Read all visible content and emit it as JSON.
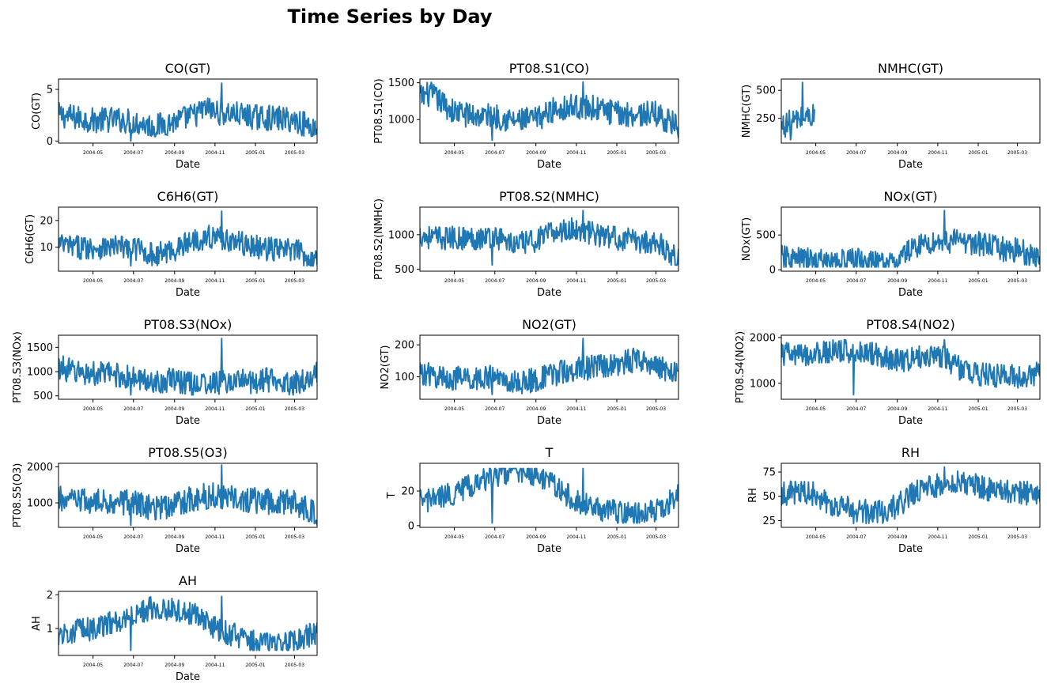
{
  "figure": {
    "title": "Time Series by Day"
  },
  "chart_data": [
    {
      "type": "line",
      "title": "CO(GT)",
      "xlabel": "Date",
      "ylabel": "CO(GT)",
      "x_range": [
        "2004-03-10",
        "2005-04-04"
      ],
      "ylim": [
        -0.2,
        6.0
      ],
      "yticks": [
        0,
        5
      ],
      "ytick_labels": [
        "0",
        "5"
      ],
      "xticks": [
        "2004-05",
        "2004-07",
        "2004-09",
        "2004-11",
        "2005-01",
        "2005-03"
      ],
      "series": [
        {
          "x": [
            "2004-03-10",
            "2004-04-01",
            "2004-05-01",
            "2004-06-01",
            "2004-07-01",
            "2004-08-01",
            "2004-09-01",
            "2004-10-01",
            "2004-10-20",
            "2004-11-01",
            "2004-12-01",
            "2005-01-01",
            "2005-02-01",
            "2005-03-01",
            "2005-04-04"
          ],
          "values": [
            2.5,
            2.3,
            2.0,
            2.1,
            1.9,
            1.4,
            1.9,
            2.5,
            3.2,
            2.8,
            2.6,
            2.3,
            2.2,
            2.0,
            1.2
          ],
          "min": 0.0,
          "max": 5.6
        }
      ]
    },
    {
      "type": "line",
      "title": "PT08.S1(CO)",
      "xlabel": "Date",
      "ylabel": "PT08.S1(CO)",
      "x_range": [
        "2004-03-10",
        "2005-04-04"
      ],
      "ylim": [
        680,
        1550
      ],
      "yticks": [
        1000,
        1500
      ],
      "ytick_labels": [
        "1000",
        "1500"
      ],
      "xticks": [
        "2004-05",
        "2004-07",
        "2004-09",
        "2004-11",
        "2005-01",
        "2005-03"
      ],
      "series": [
        {
          "x": [
            "2004-03-10",
            "2004-03-25",
            "2004-05-01",
            "2004-06-01",
            "2004-07-01",
            "2004-08-01",
            "2004-09-01",
            "2004-10-01",
            "2004-11-01",
            "2004-12-01",
            "2005-01-01",
            "2005-02-01",
            "2005-03-01",
            "2005-04-04"
          ],
          "values": [
            1300,
            1350,
            1100,
            1050,
            1050,
            980,
            1000,
            1150,
            1180,
            1150,
            1080,
            1070,
            1080,
            900
          ],
          "min": 720,
          "max": 1510
        }
      ]
    },
    {
      "type": "line",
      "title": "NMHC(GT)",
      "xlabel": "Date",
      "ylabel": "NMHC(GT)",
      "x_range": [
        "2004-03-10",
        "2005-04-04"
      ],
      "ylim": [
        30,
        600
      ],
      "yticks": [
        250,
        500
      ],
      "ytick_labels": [
        "250",
        "500"
      ],
      "xticks": [
        "2004-05",
        "2004-07",
        "2004-09",
        "2004-11",
        "2005-01",
        "2005-03"
      ],
      "series": [
        {
          "x": [
            "2004-03-10",
            "2004-03-25",
            "2004-04-10",
            "2004-04-25",
            "2004-04-30"
          ],
          "values": [
            180,
            220,
            250,
            280,
            260
          ],
          "min": 60,
          "max": 570
        }
      ]
    },
    {
      "type": "line",
      "title": "C6H6(GT)",
      "xlabel": "Date",
      "ylabel": "C6H6(GT)",
      "x_range": [
        "2004-03-10",
        "2005-04-04"
      ],
      "ylim": [
        1,
        25
      ],
      "yticks": [
        10,
        20
      ],
      "ytick_labels": [
        "10",
        "20"
      ],
      "xticks": [
        "2004-05",
        "2004-07",
        "2004-09",
        "2004-11",
        "2005-01",
        "2005-03"
      ],
      "series": [
        {
          "x": [
            "2004-03-10",
            "2004-04-01",
            "2004-05-01",
            "2004-06-01",
            "2004-07-01",
            "2004-08-01",
            "2004-09-01",
            "2004-10-01",
            "2004-11-01",
            "2004-12-01",
            "2005-01-01",
            "2005-02-01",
            "2005-03-01",
            "2005-04-04"
          ],
          "values": [
            11,
            10,
            10,
            10,
            10,
            7,
            9,
            13,
            14,
            12,
            10,
            9,
            9,
            5
          ],
          "min": 3,
          "max": 23.5
        }
      ]
    },
    {
      "type": "line",
      "title": "PT08.S2(NMHC)",
      "xlabel": "Date",
      "ylabel": "PT08.S2(NMHC)",
      "x_range": [
        "2004-03-10",
        "2005-04-04"
      ],
      "ylim": [
        470,
        1400
      ],
      "yticks": [
        500,
        1000
      ],
      "ytick_labels": [
        "500",
        "1000"
      ],
      "xticks": [
        "2004-05",
        "2004-07",
        "2004-09",
        "2004-11",
        "2005-01",
        "2005-03"
      ],
      "series": [
        {
          "x": [
            "2004-03-10",
            "2004-04-01",
            "2004-05-01",
            "2004-06-01",
            "2004-07-01",
            "2004-08-01",
            "2004-09-01",
            "2004-10-01",
            "2004-11-01",
            "2004-12-01",
            "2005-01-01",
            "2005-02-01",
            "2005-03-01",
            "2005-04-04"
          ],
          "values": [
            1000,
            950,
            950,
            950,
            980,
            850,
            920,
            1050,
            1080,
            1000,
            950,
            900,
            900,
            650
          ],
          "min": 560,
          "max": 1350
        }
      ]
    },
    {
      "type": "line",
      "title": "NOx(GT)",
      "xlabel": "Date",
      "ylabel": "NOx(GT)",
      "x_range": [
        "2004-03-10",
        "2005-04-04"
      ],
      "ylim": [
        -20,
        900
      ],
      "yticks": [
        0,
        500
      ],
      "ytick_labels": [
        "0",
        "500"
      ],
      "xticks": [
        "2004-05",
        "2004-07",
        "2004-09",
        "2004-11",
        "2005-01",
        "2005-03"
      ],
      "series": [
        {
          "x": [
            "2004-03-10",
            "2004-04-01",
            "2004-05-01",
            "2004-06-01",
            "2004-07-01",
            "2004-08-01",
            "2004-08-25",
            "2004-09-15",
            "2004-10-01",
            "2004-11-01",
            "2004-12-01",
            "2005-01-01",
            "2005-02-01",
            "2005-03-01",
            "2005-04-04"
          ],
          "values": [
            180,
            150,
            130,
            120,
            150,
            90,
            60,
            250,
            350,
            400,
            420,
            380,
            300,
            280,
            180
          ],
          "min": 40,
          "max": 850
        }
      ]
    },
    {
      "type": "line",
      "title": "PT08.S3(NOx)",
      "xlabel": "Date",
      "ylabel": "PT08.S3(NOx)",
      "x_range": [
        "2004-03-10",
        "2005-04-04"
      ],
      "ylim": [
        430,
        1750
      ],
      "yticks": [
        500,
        1000,
        1500
      ],
      "ytick_labels": [
        "500",
        "1000",
        "1500"
      ],
      "xticks": [
        "2004-05",
        "2004-07",
        "2004-09",
        "2004-11",
        "2005-01",
        "2005-03"
      ],
      "series": [
        {
          "x": [
            "2004-03-10",
            "2004-04-01",
            "2004-05-01",
            "2004-06-01",
            "2004-07-01",
            "2004-08-01",
            "2004-09-01",
            "2004-10-01",
            "2004-11-01",
            "2004-12-01",
            "2005-01-01",
            "2005-02-01",
            "2005-03-01",
            "2005-04-04"
          ],
          "values": [
            1100,
            1000,
            950,
            950,
            850,
            800,
            820,
            750,
            750,
            800,
            800,
            850,
            750,
            950
          ],
          "min": 520,
          "max": 1680
        }
      ]
    },
    {
      "type": "line",
      "title": "NO2(GT)",
      "xlabel": "Date",
      "ylabel": "NO2(GT)",
      "x_range": [
        "2004-03-10",
        "2005-04-04"
      ],
      "ylim": [
        30,
        230
      ],
      "yticks": [
        100,
        200
      ],
      "ytick_labels": [
        "100",
        "200"
      ],
      "xticks": [
        "2004-05",
        "2004-07",
        "2004-09",
        "2004-11",
        "2005-01",
        "2005-03"
      ],
      "series": [
        {
          "x": [
            "2004-03-10",
            "2004-04-01",
            "2004-05-01",
            "2004-06-01",
            "2004-07-01",
            "2004-08-01",
            "2004-09-01",
            "2004-10-01",
            "2004-11-01",
            "2004-12-01",
            "2005-01-01",
            "2005-02-01",
            "2005-03-01",
            "2005-04-04"
          ],
          "values": [
            115,
            100,
            95,
            95,
            100,
            80,
            90,
            110,
            125,
            130,
            140,
            155,
            140,
            100
          ],
          "min": 45,
          "max": 220
        }
      ]
    },
    {
      "type": "line",
      "title": "PT08.S4(NO2)",
      "xlabel": "Date",
      "ylabel": "PT08.S4(NO2)",
      "x_range": [
        "2004-03-10",
        "2005-04-04"
      ],
      "ylim": [
        650,
        2050
      ],
      "yticks": [
        1000,
        2000
      ],
      "ytick_labels": [
        "1000",
        "2000"
      ],
      "xticks": [
        "2004-05",
        "2004-07",
        "2004-09",
        "2004-11",
        "2005-01",
        "2005-03"
      ],
      "series": [
        {
          "x": [
            "2004-03-10",
            "2004-04-01",
            "2004-05-01",
            "2004-06-01",
            "2004-07-01",
            "2004-08-01",
            "2004-09-01",
            "2004-10-01",
            "2004-11-01",
            "2004-12-01",
            "2005-01-01",
            "2005-02-01",
            "2005-03-01",
            "2005-04-04"
          ],
          "values": [
            1650,
            1600,
            1650,
            1700,
            1700,
            1650,
            1500,
            1550,
            1650,
            1350,
            1200,
            1150,
            1150,
            1200
          ],
          "min": 750,
          "max": 1950
        }
      ]
    },
    {
      "type": "line",
      "title": "PT08.S5(O3)",
      "xlabel": "Date",
      "ylabel": "PT08.S5(O3)",
      "x_range": [
        "2004-03-10",
        "2005-04-04"
      ],
      "ylim": [
        320,
        2100
      ],
      "yticks": [
        1000,
        2000
      ],
      "ytick_labels": [
        "1000",
        "2000"
      ],
      "xticks": [
        "2004-05",
        "2004-07",
        "2004-09",
        "2004-11",
        "2005-01",
        "2005-03"
      ],
      "series": [
        {
          "x": [
            "2004-03-10",
            "2004-04-01",
            "2004-05-01",
            "2004-06-01",
            "2004-07-01",
            "2004-08-01",
            "2004-09-01",
            "2004-10-01",
            "2004-11-01",
            "2004-12-01",
            "2005-01-01",
            "2005-02-01",
            "2005-03-01",
            "2005-04-04"
          ],
          "values": [
            1100,
            1050,
            1000,
            1050,
            1000,
            850,
            950,
            1150,
            1200,
            1150,
            1050,
            1000,
            1000,
            700
          ],
          "min": 380,
          "max": 2050
        }
      ]
    },
    {
      "type": "line",
      "title": "T",
      "xlabel": "Date",
      "ylabel": "T",
      "x_range": [
        "2004-03-10",
        "2005-04-04"
      ],
      "ylim": [
        -1,
        36
      ],
      "yticks": [
        0,
        20
      ],
      "ytick_labels": [
        "0",
        "20"
      ],
      "xticks": [
        "2004-05",
        "2004-07",
        "2004-09",
        "2004-11",
        "2005-01",
        "2005-03"
      ],
      "series": [
        {
          "x": [
            "2004-03-10",
            "2004-04-01",
            "2004-05-01",
            "2004-06-01",
            "2004-07-01",
            "2004-08-01",
            "2004-09-01",
            "2004-10-01",
            "2004-11-01",
            "2004-12-01",
            "2005-01-01",
            "2005-02-01",
            "2005-03-01",
            "2005-04-04"
          ],
          "values": [
            14,
            15,
            19,
            24,
            29,
            32,
            29,
            22,
            14,
            10,
            8,
            6,
            9,
            17
          ],
          "min": 1.5,
          "max": 33
        }
      ]
    },
    {
      "type": "line",
      "title": "RH",
      "xlabel": "Date",
      "ylabel": "RH",
      "x_range": [
        "2004-03-10",
        "2005-04-04"
      ],
      "ylim": [
        18,
        84
      ],
      "yticks": [
        25,
        50,
        75
      ],
      "ytick_labels": [
        "25",
        "50",
        "75"
      ],
      "xticks": [
        "2004-05",
        "2004-07",
        "2004-09",
        "2004-11",
        "2005-01",
        "2005-03"
      ],
      "series": [
        {
          "x": [
            "2004-03-10",
            "2004-04-01",
            "2004-05-01",
            "2004-06-01",
            "2004-07-01",
            "2004-08-01",
            "2004-09-01",
            "2004-10-01",
            "2004-11-01",
            "2004-12-01",
            "2005-01-01",
            "2005-02-01",
            "2005-03-01",
            "2005-04-04"
          ],
          "values": [
            52,
            55,
            52,
            40,
            35,
            33,
            40,
            55,
            62,
            65,
            60,
            55,
            55,
            50
          ],
          "min": 22,
          "max": 80
        }
      ]
    },
    {
      "type": "line",
      "title": "AH",
      "xlabel": "Date",
      "ylabel": "AH",
      "x_range": [
        "2004-03-10",
        "2005-04-04"
      ],
      "ylim": [
        0.2,
        2.1
      ],
      "yticks": [
        1,
        2
      ],
      "ytick_labels": [
        "1",
        "2"
      ],
      "xticks": [
        "2004-05",
        "2004-07",
        "2004-09",
        "2004-11",
        "2005-01",
        "2005-03"
      ],
      "series": [
        {
          "x": [
            "2004-03-10",
            "2004-04-01",
            "2004-05-01",
            "2004-06-01",
            "2004-07-01",
            "2004-08-01",
            "2004-09-01",
            "2004-10-01",
            "2004-11-01",
            "2004-12-01",
            "2005-01-01",
            "2005-02-01",
            "2005-03-01",
            "2005-04-04"
          ],
          "values": [
            0.8,
            0.9,
            1.0,
            1.2,
            1.4,
            1.65,
            1.55,
            1.45,
            1.0,
            0.8,
            0.6,
            0.5,
            0.6,
            0.9
          ],
          "min": 0.35,
          "max": 1.95
        }
      ]
    }
  ]
}
